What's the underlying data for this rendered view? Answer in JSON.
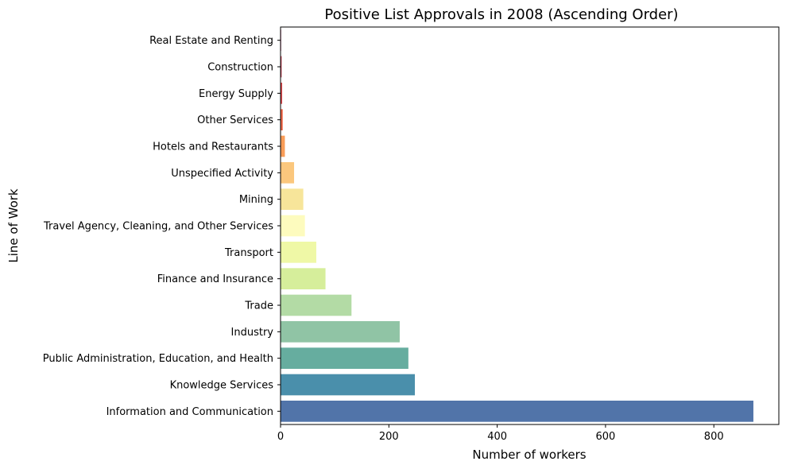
{
  "chart_data": {
    "type": "bar",
    "orientation": "horizontal",
    "title": "Positive List Approvals in 2008 (Ascending Order)",
    "xlabel": "Number of workers",
    "ylabel": "Line of Work",
    "xlim": [
      0,
      920
    ],
    "xticks": [
      0,
      200,
      400,
      600,
      800
    ],
    "grid": false,
    "categories": [
      "Real Estate and Renting",
      "Construction",
      "Energy Supply",
      "Other Services",
      "Hotels and Restaurants",
      "Unspecified Activity",
      "Mining",
      "Travel Agency, Cleaning, and Other Services",
      "Transport",
      "Finance and Insurance",
      "Trade",
      "Industry",
      "Public Administration, Education, and Health",
      "Knowledge Services",
      "Information and Communication"
    ],
    "values": [
      1,
      2,
      3,
      4,
      8,
      25,
      42,
      45,
      66,
      83,
      131,
      220,
      236,
      248,
      873
    ],
    "colors": [
      "#9e0142",
      "#c23b4e",
      "#dc494c",
      "#ee6445",
      "#f99d58",
      "#fbc77d",
      "#f7e59a",
      "#fdfbbe",
      "#eff8a6",
      "#d6ee9b",
      "#b3dba5",
      "#90c4a5",
      "#66ad9f",
      "#4a8fab",
      "#5174a9"
    ]
  }
}
